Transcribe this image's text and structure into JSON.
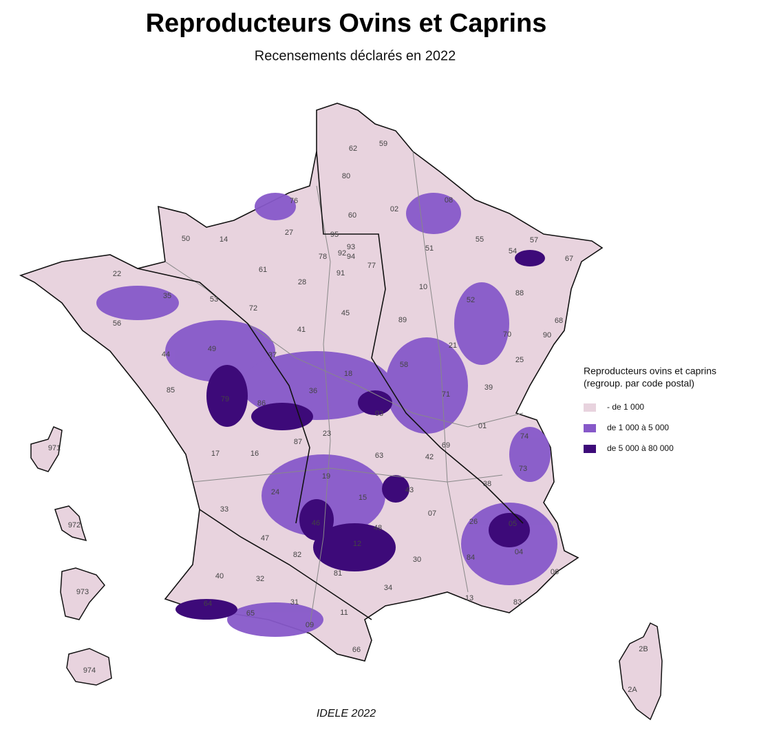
{
  "header": {
    "title": "Reproducteurs Ovins et Caprins",
    "subtitle": "Recensements déclarés en 2022"
  },
  "legend": {
    "title": [
      "Reproducteurs ovins et caprins",
      "(regroup. par code postal)"
    ],
    "items": [
      {
        "label": "- de 1 000",
        "color": "#e8d3de"
      },
      {
        "label": "de 1 000 à 5 000",
        "color": "#8759c9"
      },
      {
        "label": "de 5 000 à 80 000",
        "color": "#3d0a79"
      }
    ]
  },
  "departments": [
    "62",
    "59",
    "80",
    "02",
    "08",
    "60",
    "76",
    "27",
    "14",
    "50",
    "95",
    "93",
    "78",
    "92",
    "94",
    "77",
    "91",
    "51",
    "55",
    "57",
    "54",
    "67",
    "61",
    "22",
    "35",
    "28",
    "10",
    "52",
    "88",
    "53",
    "72",
    "56",
    "45",
    "89",
    "68",
    "41",
    "70",
    "90",
    "44",
    "49",
    "37",
    "21",
    "25",
    "18",
    "58",
    "39",
    "85",
    "79",
    "86",
    "36",
    "71",
    "03",
    "01",
    "74",
    "87",
    "23",
    "17",
    "16",
    "63",
    "42",
    "69",
    "73",
    "19",
    "24",
    "15",
    "43",
    "38",
    "33",
    "07",
    "26",
    "05",
    "46",
    "48",
    "47",
    "12",
    "82",
    "04",
    "84",
    "30",
    "06",
    "40",
    "32",
    "81",
    "34",
    "13",
    "83",
    "31",
    "11",
    "65",
    "64",
    "09",
    "66",
    "971",
    "972",
    "973",
    "974",
    "2B",
    "2A"
  ],
  "caption": "IDELE 2022"
}
